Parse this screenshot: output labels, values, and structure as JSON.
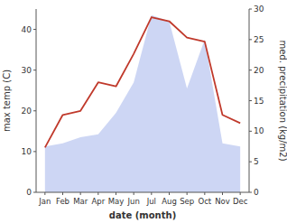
{
  "chart_data": {
    "type": "line",
    "categories": [
      "Jan",
      "Feb",
      "Mar",
      "Apr",
      "May",
      "Jun",
      "Jul",
      "Aug",
      "Sep",
      "Oct",
      "Nov",
      "Dec"
    ],
    "series": [
      {
        "type": "area",
        "axis": "y2",
        "color": "#b8c4f0",
        "values": [
          7.5,
          8,
          9,
          9.5,
          13,
          18,
          29,
          28,
          17,
          25,
          8,
          7.5
        ]
      },
      {
        "type": "line",
        "color": "#c0392b",
        "values": [
          11,
          19,
          20,
          27,
          26,
          34,
          43,
          42,
          38,
          37,
          19,
          17
        ]
      }
    ],
    "xlabel": "date (month)",
    "ylabel": "max temp (C)",
    "y2label": "med. precipitation (kg/m2)",
    "ylim": [
      0,
      45
    ],
    "yticks": [
      0,
      10,
      20,
      30,
      40
    ],
    "y2lim": [
      0,
      30
    ],
    "y2ticks": [
      0,
      5,
      10,
      15,
      20,
      25,
      30
    ],
    "grid": false
  }
}
